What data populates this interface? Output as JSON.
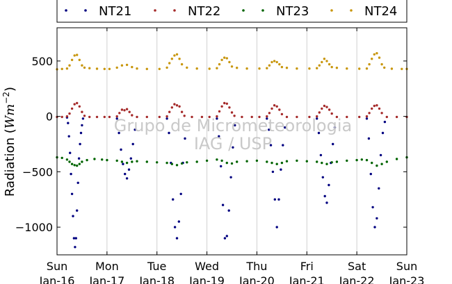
{
  "chart_data": {
    "type": "scatter",
    "ylabel_text": "Radiation (",
    "ylabel_math": "Wm",
    "ylabel_exp": "−2",
    "ylabel_close": ")",
    "ylim": [
      -1250,
      800
    ],
    "xlim_days": [
      0,
      7
    ],
    "grid_x": true,
    "grid_y": false,
    "legend_position": "top (above plot)",
    "yticks": [
      {
        "value": 500,
        "label": "500"
      },
      {
        "value": 0,
        "label": "0"
      },
      {
        "value": -500,
        "label": "−500"
      },
      {
        "value": -1000,
        "label": "−1000"
      }
    ],
    "xticks": [
      {
        "day": 0,
        "weekday": "Sun",
        "date": "Jan-16"
      },
      {
        "day": 1,
        "weekday": "Mon",
        "date": "Jan-17"
      },
      {
        "day": 2,
        "weekday": "Tue",
        "date": "Jan-18"
      },
      {
        "day": 3,
        "weekday": "Wed",
        "date": "Jan-19"
      },
      {
        "day": 4,
        "weekday": "Thu",
        "date": "Jan-20"
      },
      {
        "day": 5,
        "weekday": "Fri",
        "date": "Jan-21"
      },
      {
        "day": 6,
        "weekday": "Sat",
        "date": "Jan-22"
      },
      {
        "day": 7,
        "weekday": "Sun",
        "date": "Jan-23"
      }
    ],
    "watermark_line1": "Grupo de Micrometeorologia",
    "watermark_line2": "IAG / USP",
    "series": [
      {
        "name": "NT21",
        "color": "#000080",
        "points": [
          [
            0.2,
            -10
          ],
          [
            0.22,
            -60
          ],
          [
            0.24,
            -180
          ],
          [
            0.26,
            -330
          ],
          [
            0.28,
            -520
          ],
          [
            0.3,
            -700
          ],
          [
            0.32,
            -900
          ],
          [
            0.34,
            -1100
          ],
          [
            0.36,
            -1180
          ],
          [
            0.38,
            -1100
          ],
          [
            0.4,
            -850
          ],
          [
            0.42,
            -600
          ],
          [
            0.44,
            -380
          ],
          [
            0.46,
            -250
          ],
          [
            0.48,
            -150
          ],
          [
            0.5,
            -80
          ],
          [
            0.52,
            -20
          ],
          [
            1.2,
            -20
          ],
          [
            1.24,
            -150
          ],
          [
            1.28,
            -300
          ],
          [
            1.32,
            -430
          ],
          [
            1.36,
            -520
          ],
          [
            1.4,
            -560
          ],
          [
            1.44,
            -480
          ],
          [
            1.48,
            -380
          ],
          [
            1.52,
            -250
          ],
          [
            1.56,
            -120
          ],
          [
            2.2,
            -20
          ],
          [
            2.24,
            -150
          ],
          [
            2.28,
            -420
          ],
          [
            2.32,
            -750
          ],
          [
            2.36,
            -1000
          ],
          [
            2.4,
            -1100
          ],
          [
            2.44,
            -950
          ],
          [
            2.48,
            -700
          ],
          [
            2.52,
            -420
          ],
          [
            2.56,
            -200
          ],
          [
            3.2,
            -20
          ],
          [
            3.24,
            -180
          ],
          [
            3.28,
            -450
          ],
          [
            3.32,
            -800
          ],
          [
            3.36,
            -1100
          ],
          [
            3.4,
            -1080
          ],
          [
            3.44,
            -850
          ],
          [
            3.48,
            -550
          ],
          [
            3.52,
            -280
          ],
          [
            3.56,
            -80
          ],
          [
            4.2,
            -20
          ],
          [
            4.24,
            -120
          ],
          [
            4.28,
            -260
          ],
          [
            4.32,
            -500
          ],
          [
            4.36,
            -750
          ],
          [
            4.4,
            -1000
          ],
          [
            4.44,
            -750
          ],
          [
            4.48,
            -480
          ],
          [
            4.52,
            -260
          ],
          [
            4.56,
            -100
          ],
          [
            5.2,
            -20
          ],
          [
            5.24,
            -150
          ],
          [
            5.28,
            -350
          ],
          [
            5.32,
            -550
          ],
          [
            5.36,
            -720
          ],
          [
            5.4,
            -780
          ],
          [
            5.44,
            -620
          ],
          [
            5.48,
            -420
          ],
          [
            5.52,
            -250
          ],
          [
            5.56,
            -100
          ],
          [
            6.2,
            -20
          ],
          [
            6.24,
            -200
          ],
          [
            6.28,
            -520
          ],
          [
            6.32,
            -820
          ],
          [
            6.36,
            -1000
          ],
          [
            6.4,
            -920
          ],
          [
            6.44,
            -650
          ],
          [
            6.48,
            -350
          ],
          [
            6.52,
            -150
          ],
          [
            6.56,
            -50
          ]
        ]
      },
      {
        "name": "NT22",
        "color": "#a52a2a",
        "points": [
          [
            0.0,
            -5
          ],
          [
            0.1,
            -5
          ],
          [
            0.2,
            0
          ],
          [
            0.25,
            25
          ],
          [
            0.3,
            70
          ],
          [
            0.35,
            110
          ],
          [
            0.4,
            120
          ],
          [
            0.45,
            90
          ],
          [
            0.5,
            40
          ],
          [
            0.55,
            5
          ],
          [
            0.65,
            -5
          ],
          [
            0.8,
            -5
          ],
          [
            0.95,
            -5
          ],
          [
            1.05,
            -5
          ],
          [
            1.2,
            0
          ],
          [
            1.25,
            30
          ],
          [
            1.3,
            60
          ],
          [
            1.35,
            55
          ],
          [
            1.4,
            65
          ],
          [
            1.45,
            40
          ],
          [
            1.5,
            10
          ],
          [
            1.6,
            -5
          ],
          [
            1.8,
            -5
          ],
          [
            2.05,
            -5
          ],
          [
            2.2,
            0
          ],
          [
            2.25,
            40
          ],
          [
            2.3,
            80
          ],
          [
            2.35,
            110
          ],
          [
            2.4,
            100
          ],
          [
            2.45,
            90
          ],
          [
            2.5,
            40
          ],
          [
            2.55,
            5
          ],
          [
            2.7,
            -5
          ],
          [
            2.9,
            -5
          ],
          [
            3.05,
            -5
          ],
          [
            3.2,
            0
          ],
          [
            3.25,
            45
          ],
          [
            3.3,
            90
          ],
          [
            3.35,
            120
          ],
          [
            3.4,
            115
          ],
          [
            3.45,
            80
          ],
          [
            3.5,
            35
          ],
          [
            3.55,
            5
          ],
          [
            3.7,
            -5
          ],
          [
            3.9,
            -5
          ],
          [
            4.05,
            -5
          ],
          [
            4.2,
            0
          ],
          [
            4.25,
            30
          ],
          [
            4.3,
            70
          ],
          [
            4.35,
            100
          ],
          [
            4.4,
            90
          ],
          [
            4.45,
            60
          ],
          [
            4.5,
            20
          ],
          [
            4.6,
            -5
          ],
          [
            4.8,
            -5
          ],
          [
            5.05,
            -5
          ],
          [
            5.2,
            0
          ],
          [
            5.25,
            35
          ],
          [
            5.3,
            70
          ],
          [
            5.35,
            95
          ],
          [
            5.4,
            85
          ],
          [
            5.45,
            60
          ],
          [
            5.5,
            25
          ],
          [
            5.6,
            -5
          ],
          [
            5.8,
            -5
          ],
          [
            6.05,
            -5
          ],
          [
            6.2,
            0
          ],
          [
            6.25,
            30
          ],
          [
            6.3,
            70
          ],
          [
            6.35,
            95
          ],
          [
            6.4,
            100
          ],
          [
            6.45,
            70
          ],
          [
            6.5,
            30
          ],
          [
            6.6,
            -5
          ],
          [
            6.8,
            -5
          ],
          [
            7.0,
            -5
          ]
        ]
      },
      {
        "name": "NT23",
        "color": "#006400",
        "points": [
          [
            0.0,
            -370
          ],
          [
            0.1,
            -375
          ],
          [
            0.2,
            -390
          ],
          [
            0.25,
            -410
          ],
          [
            0.3,
            -430
          ],
          [
            0.35,
            -440
          ],
          [
            0.4,
            -445
          ],
          [
            0.45,
            -430
          ],
          [
            0.5,
            -410
          ],
          [
            0.6,
            -395
          ],
          [
            0.75,
            -385
          ],
          [
            0.9,
            -390
          ],
          [
            1.0,
            -395
          ],
          [
            1.2,
            -400
          ],
          [
            1.3,
            -410
          ],
          [
            1.4,
            -420
          ],
          [
            1.5,
            -410
          ],
          [
            1.6,
            -405
          ],
          [
            1.8,
            -410
          ],
          [
            2.0,
            -415
          ],
          [
            2.2,
            -420
          ],
          [
            2.3,
            -430
          ],
          [
            2.4,
            -440
          ],
          [
            2.5,
            -425
          ],
          [
            2.6,
            -415
          ],
          [
            2.8,
            -410
          ],
          [
            3.0,
            -400
          ],
          [
            3.2,
            -390
          ],
          [
            3.3,
            -400
          ],
          [
            3.4,
            -420
          ],
          [
            3.5,
            -425
          ],
          [
            3.6,
            -410
          ],
          [
            3.8,
            -405
          ],
          [
            4.0,
            -400
          ],
          [
            4.2,
            -410
          ],
          [
            4.3,
            -420
          ],
          [
            4.4,
            -430
          ],
          [
            4.5,
            -420
          ],
          [
            4.6,
            -405
          ],
          [
            4.8,
            -400
          ],
          [
            5.0,
            -405
          ],
          [
            5.2,
            -410
          ],
          [
            5.3,
            -420
          ],
          [
            5.4,
            -430
          ],
          [
            5.5,
            -415
          ],
          [
            5.6,
            -410
          ],
          [
            5.8,
            -400
          ],
          [
            6.0,
            -395
          ],
          [
            6.1,
            -390
          ],
          [
            6.2,
            -395
          ],
          [
            6.3,
            -420
          ],
          [
            6.4,
            -445
          ],
          [
            6.5,
            -430
          ],
          [
            6.6,
            -410
          ],
          [
            6.8,
            -385
          ],
          [
            7.0,
            -370
          ]
        ]
      },
      {
        "name": "NT24",
        "color": "#c8960c",
        "points": [
          [
            0.0,
            425
          ],
          [
            0.1,
            428
          ],
          [
            0.2,
            432
          ],
          [
            0.25,
            460
          ],
          [
            0.3,
            510
          ],
          [
            0.35,
            550
          ],
          [
            0.4,
            555
          ],
          [
            0.45,
            510
          ],
          [
            0.5,
            460
          ],
          [
            0.55,
            440
          ],
          [
            0.65,
            435
          ],
          [
            0.8,
            430
          ],
          [
            0.95,
            428
          ],
          [
            1.05,
            428
          ],
          [
            1.2,
            440
          ],
          [
            1.3,
            460
          ],
          [
            1.4,
            465
          ],
          [
            1.5,
            445
          ],
          [
            1.6,
            432
          ],
          [
            1.8,
            428
          ],
          [
            2.05,
            428
          ],
          [
            2.2,
            440
          ],
          [
            2.25,
            480
          ],
          [
            2.3,
            520
          ],
          [
            2.35,
            550
          ],
          [
            2.4,
            560
          ],
          [
            2.45,
            520
          ],
          [
            2.5,
            470
          ],
          [
            2.6,
            440
          ],
          [
            2.8,
            432
          ],
          [
            3.05,
            430
          ],
          [
            3.2,
            435
          ],
          [
            3.25,
            470
          ],
          [
            3.3,
            510
          ],
          [
            3.35,
            530
          ],
          [
            3.4,
            525
          ],
          [
            3.45,
            490
          ],
          [
            3.5,
            450
          ],
          [
            3.6,
            438
          ],
          [
            3.8,
            432
          ],
          [
            4.05,
            432
          ],
          [
            4.2,
            435
          ],
          [
            4.25,
            460
          ],
          [
            4.3,
            490
          ],
          [
            4.35,
            500
          ],
          [
            4.4,
            490
          ],
          [
            4.45,
            470
          ],
          [
            4.5,
            445
          ],
          [
            4.6,
            438
          ],
          [
            4.8,
            432
          ],
          [
            5.05,
            432
          ],
          [
            5.2,
            435
          ],
          [
            5.25,
            460
          ],
          [
            5.3,
            490
          ],
          [
            5.35,
            520
          ],
          [
            5.4,
            500
          ],
          [
            5.45,
            470
          ],
          [
            5.5,
            445
          ],
          [
            5.6,
            438
          ],
          [
            5.8,
            432
          ],
          [
            6.05,
            430
          ],
          [
            6.2,
            432
          ],
          [
            6.25,
            470
          ],
          [
            6.3,
            520
          ],
          [
            6.35,
            560
          ],
          [
            6.4,
            570
          ],
          [
            6.45,
            530
          ],
          [
            6.5,
            470
          ],
          [
            6.55,
            440
          ],
          [
            6.7,
            430
          ],
          [
            6.9,
            428
          ],
          [
            7.0,
            428
          ]
        ]
      }
    ]
  }
}
